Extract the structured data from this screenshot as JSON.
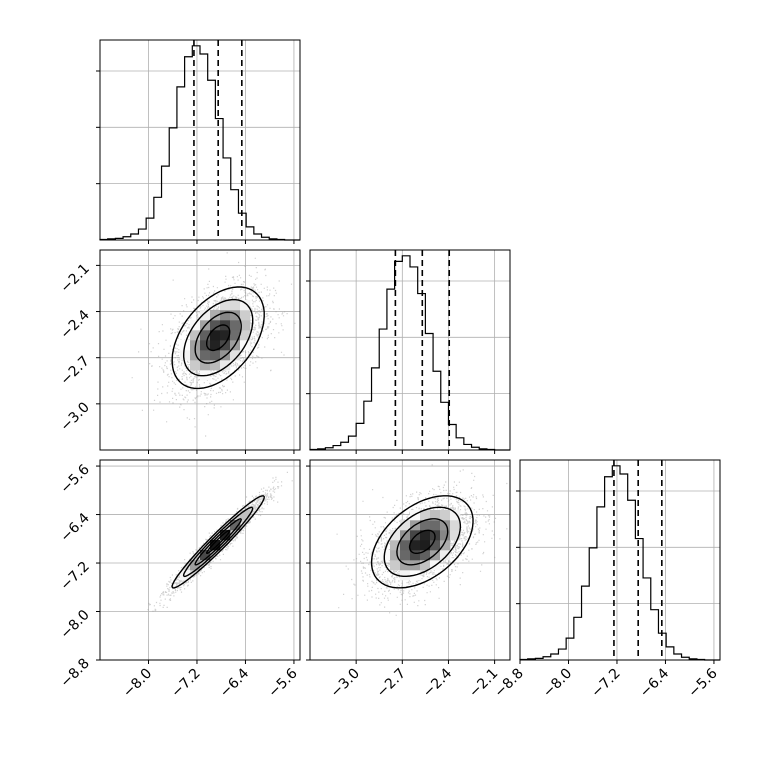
{
  "colors": {
    "line": "#000000",
    "grid": "#b0b0b0",
    "scatter": "#9a9a9a",
    "background": "#ffffff"
  },
  "chart_data": {
    "type": "corner",
    "parameters": [
      {
        "mean": -6.85,
        "sd": 0.38,
        "quantiles": [
          -7.25,
          -6.85,
          -6.46
        ],
        "range": [
          -8.8,
          -5.5
        ]
      },
      {
        "mean": -2.57,
        "sd": 0.165,
        "quantiles": [
          -2.745,
          -2.57,
          -2.395
        ],
        "range": [
          -3.3,
          -2.0
        ]
      },
      {
        "mean": -6.85,
        "sd": 0.38,
        "quantiles": [
          -7.25,
          -6.85,
          -6.46
        ],
        "range": [
          -8.8,
          -5.5
        ]
      }
    ],
    "correlations": {
      "0-1": 0.45,
      "0-2": 0.97,
      "1-2": 0.45
    },
    "grid": true,
    "histograms": [
      {
        "parameter": 0,
        "bins": 26,
        "bin_range": [
          -8.8,
          -5.5
        ],
        "counts": [
          1,
          2,
          3,
          6,
          11,
          20,
          40,
          78,
          135,
          205,
          280,
          335,
          355,
          340,
          292,
          222,
          150,
          92,
          49,
          24,
          11,
          5,
          2,
          1,
          0,
          0
        ]
      },
      {
        "parameter": 1,
        "bins": 26,
        "bin_range": [
          -3.3,
          -2.0
        ],
        "counts": [
          1,
          2,
          4,
          8,
          14,
          25,
          48,
          88,
          148,
          218,
          290,
          340,
          350,
          330,
          282,
          210,
          142,
          86,
          46,
          22,
          10,
          5,
          2,
          1,
          0,
          0
        ]
      },
      {
        "parameter": 2,
        "bins": 26,
        "bin_range": [
          -8.8,
          -5.5
        ],
        "counts": [
          1,
          2,
          3,
          6,
          11,
          20,
          40,
          78,
          135,
          205,
          280,
          335,
          355,
          340,
          292,
          222,
          150,
          92,
          49,
          24,
          11,
          5,
          2,
          1,
          0,
          0
        ]
      }
    ],
    "panels": [
      {
        "row": 0,
        "col": 0,
        "kind": "histogram",
        "xticks": [],
        "yticks": [],
        "yticks_count": 3
      },
      {
        "row": 1,
        "col": 0,
        "kind": "2d-density",
        "x_param": 0,
        "y_param": 1,
        "yticks": [
          -2.1,
          -2.4,
          -2.7,
          -3.0
        ],
        "ytick_labels": [
          "−2.1",
          "−2.4",
          "−2.7",
          "−3.0"
        ]
      },
      {
        "row": 1,
        "col": 1,
        "kind": "histogram",
        "yticks_count": 3
      },
      {
        "row": 2,
        "col": 0,
        "kind": "2d-density",
        "x_param": 0,
        "y_param": 2,
        "yticks": [
          -5.6,
          -6.4,
          -7.2,
          -8.0,
          -8.8
        ],
        "ytick_labels": [
          "−5.6",
          "−6.4",
          "−7.2",
          "−8.0",
          "−8.8"
        ],
        "xticks": [
          -8.0,
          -7.2,
          -6.4,
          -5.6
        ],
        "xtick_labels": [
          "−8.0",
          "−7.2",
          "−6.4",
          "−5.6"
        ]
      },
      {
        "row": 2,
        "col": 1,
        "kind": "2d-density",
        "x_param": 1,
        "y_param": 2,
        "xticks": [
          -3.0,
          -2.7,
          -2.4,
          -2.1
        ],
        "xtick_labels": [
          "−3.0",
          "−2.7",
          "−2.4",
          "−2.1"
        ]
      },
      {
        "row": 2,
        "col": 2,
        "kind": "histogram",
        "yticks_count": 3,
        "xticks": [
          -8.8,
          -8.0,
          -7.2,
          -6.4,
          -5.6
        ],
        "xtick_labels": [
          "−8.8",
          "−8.0",
          "−7.2",
          "−6.4",
          "−5.6"
        ]
      }
    ],
    "contour_levels_sigma": [
      0.5,
      1.0,
      1.5,
      2.0
    ],
    "quantile_line_style": "dashed",
    "xlabel": "",
    "ylabel": "",
    "title": ""
  }
}
